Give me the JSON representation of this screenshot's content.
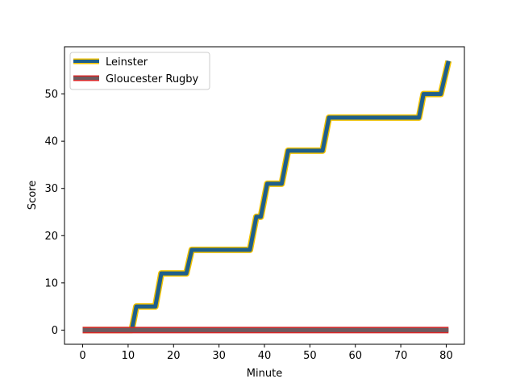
{
  "chart_data": {
    "type": "line",
    "title": "",
    "xlabel": "Minute",
    "ylabel": "Score",
    "xlim": [
      -4,
      84
    ],
    "ylim": [
      -3,
      60
    ],
    "xticks": [
      0,
      10,
      20,
      30,
      40,
      50,
      60,
      70,
      80
    ],
    "yticks": [
      0,
      10,
      20,
      30,
      40,
      50
    ],
    "grid": false,
    "legend_position": "upper-left",
    "series": [
      {
        "name": "Leinster",
        "color": "#1f5f8b",
        "edge_color": "#f2c200",
        "points": [
          [
            0,
            0
          ],
          [
            10.8,
            0
          ],
          [
            11.8,
            5
          ],
          [
            16,
            5
          ],
          [
            17.3,
            12
          ],
          [
            22.8,
            12
          ],
          [
            24,
            17
          ],
          [
            36.8,
            17
          ],
          [
            38.2,
            24
          ],
          [
            39.2,
            24
          ],
          [
            40.6,
            31
          ],
          [
            43.8,
            31
          ],
          [
            45.2,
            38
          ],
          [
            52.8,
            38
          ],
          [
            54.2,
            45
          ],
          [
            74,
            45
          ],
          [
            75,
            50
          ],
          [
            78.8,
            50
          ],
          [
            80.5,
            57
          ]
        ]
      },
      {
        "name": "Gloucester Rugby",
        "color": "#6e5b5f",
        "edge_color": "#d62728",
        "points": [
          [
            0,
            0
          ],
          [
            80.5,
            0
          ]
        ]
      }
    ]
  }
}
